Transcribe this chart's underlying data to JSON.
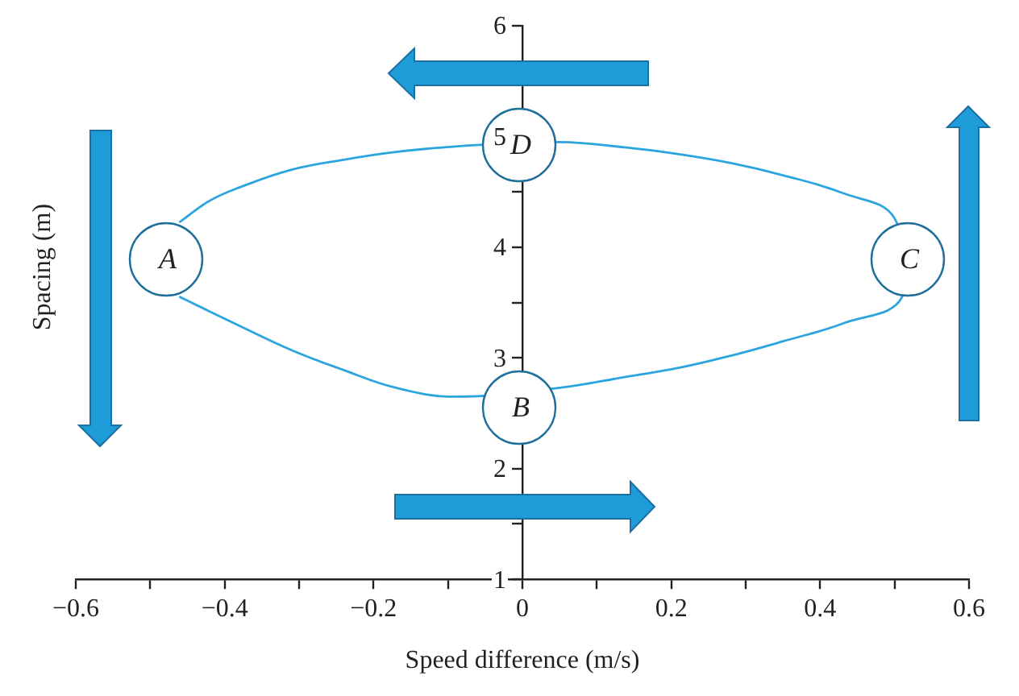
{
  "chart_data": {
    "type": "line",
    "xlabel": "Speed difference (m/s)",
    "ylabel": "Spacing (m)",
    "x": [
      -0.46,
      -0.42,
      -0.38,
      -0.31,
      -0.24,
      -0.17,
      -0.09,
      0.05,
      0.14,
      0.21,
      0.28,
      0.35,
      0.43,
      0.5,
      0.51,
      0.43,
      0.35,
      0.28,
      0.21,
      0.14,
      0.05,
      -0.09,
      -0.17,
      -0.24,
      -0.31,
      -0.38,
      -0.46
    ],
    "series": [
      {
        "color": "#2ca5de",
        "values": [
          4.23,
          4.42,
          4.54,
          4.7,
          4.79,
          4.86,
          4.91,
          4.95,
          4.9,
          4.84,
          4.76,
          4.65,
          4.49,
          4.26,
          3.55,
          3.31,
          3.15,
          3.02,
          2.91,
          2.83,
          2.73,
          2.65,
          2.73,
          2.89,
          3.07,
          3.29,
          3.55
        ]
      }
    ],
    "xlim": [
      -0.6,
      0.6
    ],
    "ylim": [
      1,
      6
    ],
    "xticks": [
      {
        "value": -0.6,
        "label": "−0.6"
      },
      {
        "value": -0.5,
        "label": null
      },
      {
        "value": -0.4,
        "label": "−0.4"
      },
      {
        "value": -0.3,
        "label": null
      },
      {
        "value": -0.2,
        "label": "−0.2"
      },
      {
        "value": -0.1,
        "label": null
      },
      0,
      {
        "value": 0.1,
        "label": null
      },
      0.2,
      {
        "value": 0.3,
        "label": null
      },
      0.4,
      {
        "value": 0.5,
        "label": null
      },
      0.6
    ],
    "yticks": [
      1,
      {
        "value": 1.5,
        "label": null
      },
      2,
      {
        "value": 2.5,
        "label": null
      },
      3,
      {
        "value": 3.5,
        "label": null
      },
      4,
      {
        "value": 4.5,
        "label": null
      },
      5,
      {
        "value": 5.5,
        "label": null
      },
      6
    ],
    "annotations": [
      "A",
      "B",
      "C",
      "D"
    ],
    "marker": "none"
  }
}
